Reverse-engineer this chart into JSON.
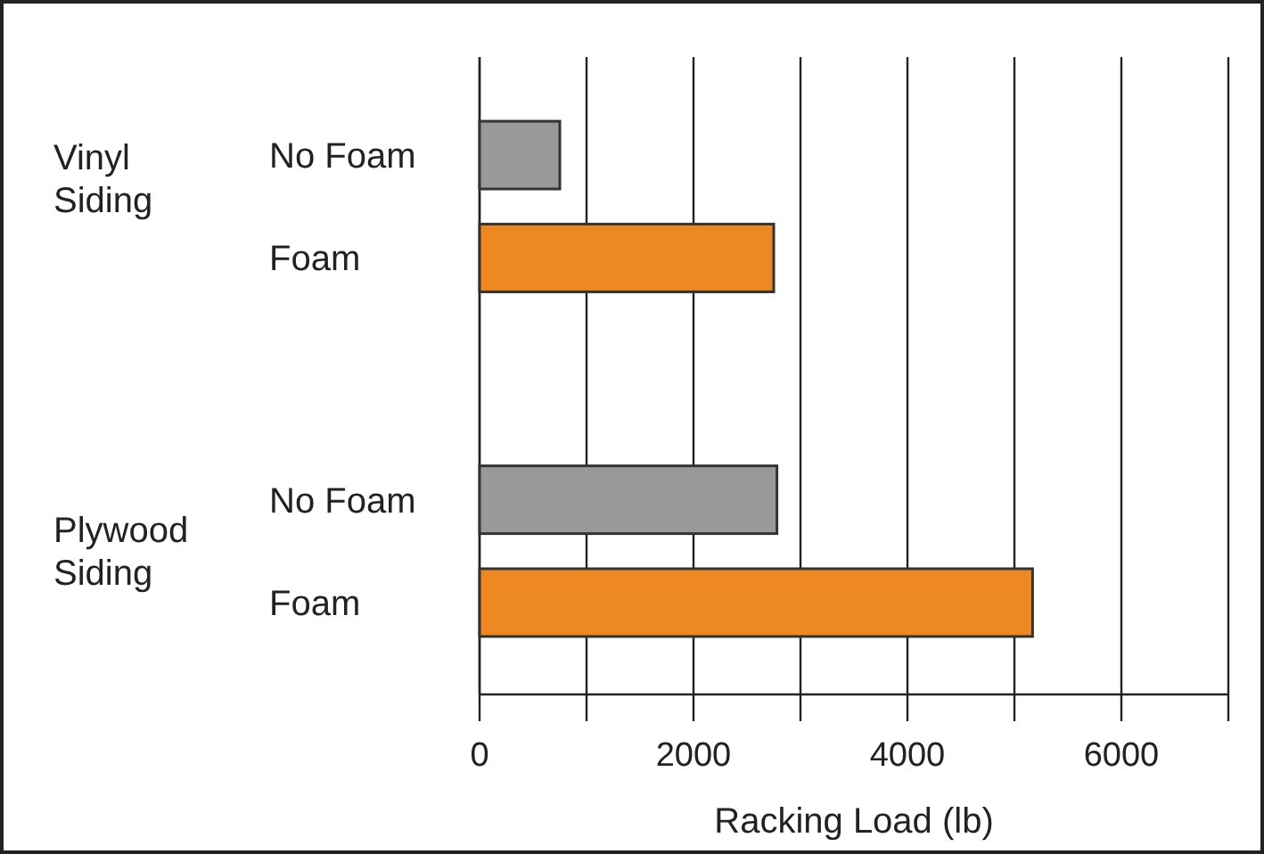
{
  "chart_data": {
    "type": "bar",
    "orientation": "horizontal",
    "xlabel": "Racking Load (lb)",
    "categories": [
      "No Foam",
      "Foam",
      "No Foam",
      "Foam"
    ],
    "values": [
      750,
      2750,
      2780,
      5170
    ],
    "colors": [
      "#999999",
      "#ee8822",
      "#999999",
      "#ee8822"
    ],
    "annotations": [
      "Vinyl\nSiding",
      "Plywood\nSiding"
    ],
    "xlim": [
      0,
      7000
    ],
    "xticks": [
      0,
      {
        "value": 1000,
        "label": null
      },
      2000,
      {
        "value": 3000,
        "label": null
      },
      4000,
      {
        "value": 5000,
        "label": null
      },
      6000,
      {
        "value": 7000,
        "label": null
      }
    ],
    "grid": "x"
  }
}
